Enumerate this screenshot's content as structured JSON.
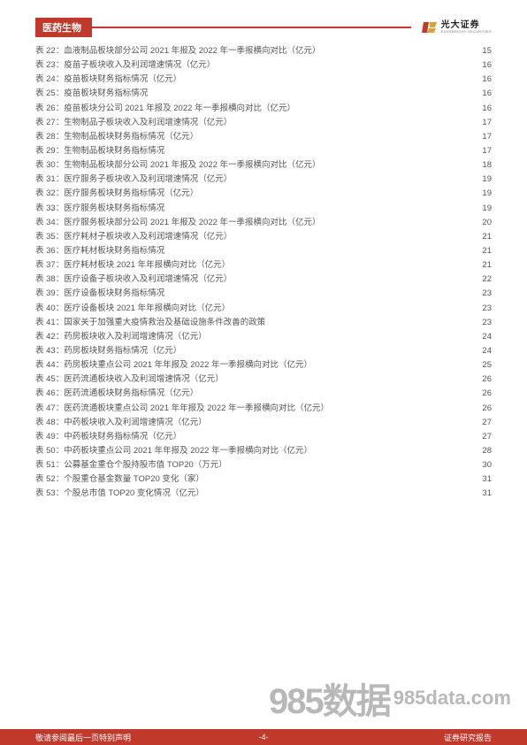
{
  "header": {
    "section_title": "医药生物",
    "brand_cn": "光大证券",
    "brand_en": "EVERBRIGHT SECURITIES",
    "brand_color": "#c0392b",
    "logo_red": "#c0392b",
    "logo_gold": "#d4a537"
  },
  "toc": {
    "entries": [
      {
        "n": "表 22：",
        "t": "血液制品板块部分公司 2021 年报及 2022 年一季报横向对比（亿元）",
        "p": "15"
      },
      {
        "n": "表 23：",
        "t": "疫苗子板块收入及利润增速情况（亿元）",
        "p": "16"
      },
      {
        "n": "表 24：",
        "t": "疫苗板块财务指标情况（亿元）",
        "p": "16"
      },
      {
        "n": "表 25：",
        "t": "疫苗板块财务指标情况",
        "p": "16"
      },
      {
        "n": "表 26：",
        "t": "疫苗板块分公司 2021 年报及 2022 年一季报横向对比（亿元）",
        "p": "16"
      },
      {
        "n": "表 27：",
        "t": "生物制品子板块收入及利润增速情况（亿元）",
        "p": "17"
      },
      {
        "n": "表 28：",
        "t": "生物制品板块财务指标情况（亿元）",
        "p": "17"
      },
      {
        "n": "表 29：",
        "t": "生物制品板块财务指标情况",
        "p": "17"
      },
      {
        "n": "表 30：",
        "t": "生物制品板块部分公司 2021 年报及 2022 年一季报横向对比（亿元）",
        "p": "18"
      },
      {
        "n": "表 31：",
        "t": "医疗服务子板块收入及利润增速情况（亿元）",
        "p": "19"
      },
      {
        "n": "表 32：",
        "t": "医疗服务板块财务指标情况（亿元）",
        "p": "19"
      },
      {
        "n": "表 33：",
        "t": "医疗服务板块财务指标情况",
        "p": "19"
      },
      {
        "n": "表 34：",
        "t": "医疗服务板块部分公司 2021 年报及 2022 年一季报横向对比（亿元）",
        "p": "20"
      },
      {
        "n": "表 35：",
        "t": "医疗耗材子板块收入及利润增速情况（亿元）",
        "p": "21"
      },
      {
        "n": "表 36：",
        "t": "医疗耗材板块财务指标情况",
        "p": "21"
      },
      {
        "n": "表 37：",
        "t": "医疗耗材板块 2021 年年报横向对比（亿元）",
        "p": "21"
      },
      {
        "n": "表 38：",
        "t": "医疗设备子板块收入及利润增速情况（亿元）",
        "p": "22"
      },
      {
        "n": "表 39：",
        "t": "医疗设备板块财务指标情况",
        "p": "23"
      },
      {
        "n": "表 40：",
        "t": "医疗设备板块 2021 年年报横向对比（亿元）",
        "p": "23"
      },
      {
        "n": "表 41：",
        "t": "国家关于加强重大疫情救治及基础设施条件改善的政策",
        "p": "23"
      },
      {
        "n": "表 42：",
        "t": "药房板块收入及利润增速情况（亿元）",
        "p": "24"
      },
      {
        "n": "表 43：",
        "t": "药房板块财务指标情况（亿元）",
        "p": "24"
      },
      {
        "n": "表 44：",
        "t": "药房板块重点公司 2021 年年报及 2022 年一季报横向对比（亿元）",
        "p": "25"
      },
      {
        "n": "表 45：",
        "t": "医药流通板块收入及利润增速情况（亿元）",
        "p": "26"
      },
      {
        "n": "表 46：",
        "t": "医药流通板块财务指标情况（亿元）",
        "p": "26"
      },
      {
        "n": "表 47：",
        "t": "医药流通板块重点公司 2021 年年报及 2022 年一季报横向对比（亿元）",
        "p": "26"
      },
      {
        "n": "表 48：",
        "t": "中药板块收入及利润增速情况（亿元）",
        "p": "27"
      },
      {
        "n": "表 49：",
        "t": "中药板块财务指标情况（亿元）",
        "p": "27"
      },
      {
        "n": "表 50：",
        "t": "中药板块重点公司 2021 年年报及 2022 年一季报横向对比（亿元）",
        "p": "28"
      },
      {
        "n": "表 51：",
        "t": "公募基金重仓个股持股市值 TOP20（万元）",
        "p": "30"
      },
      {
        "n": "表 52：",
        "t": "个股重仓基金数量 TOP20 变化（家）",
        "p": "31"
      },
      {
        "n": "表 53：",
        "t": "个股总市值 TOP20 变化情况（亿元）",
        "p": "31"
      }
    ]
  },
  "watermark": {
    "big": "985数据",
    "small": "985data.com"
  },
  "footer": {
    "left": "敬请参阅最后一页特别声明",
    "center": "-4-",
    "right": "证券研究报告",
    "background": "#c0392b"
  }
}
